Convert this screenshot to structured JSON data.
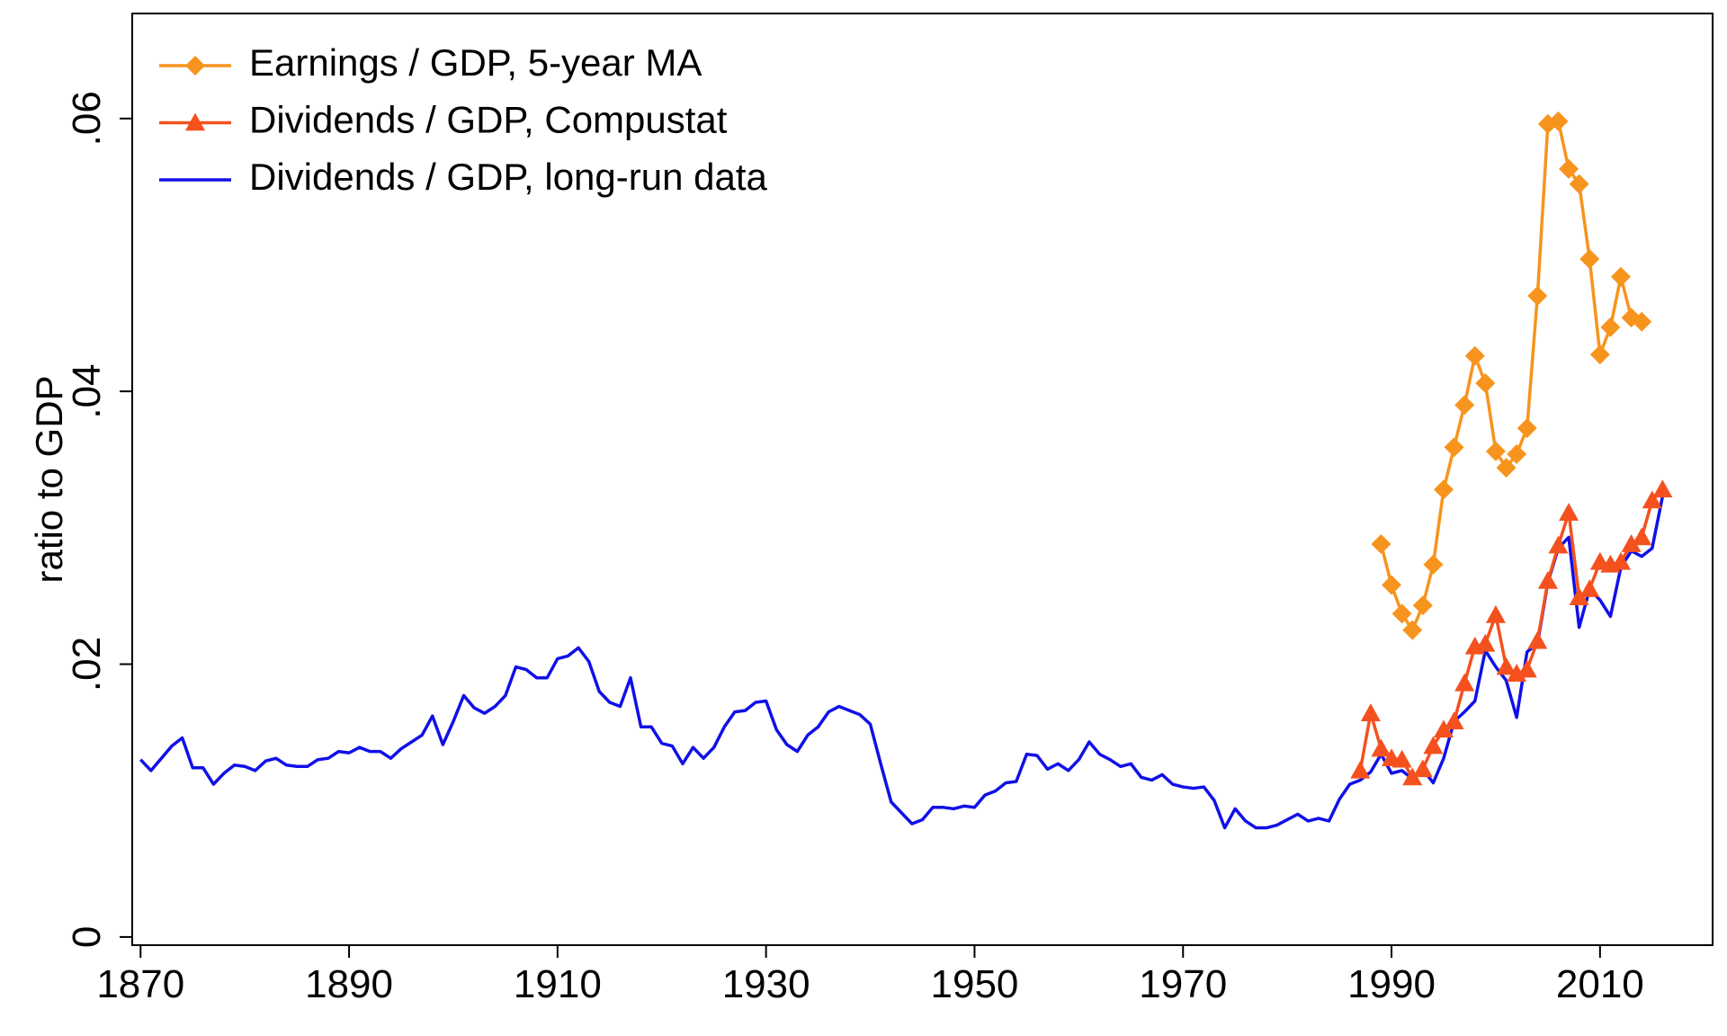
{
  "chart_data": {
    "type": "line",
    "y_label": "ratio to GDP",
    "xlim": [
      1869.2,
      2020.8
    ],
    "ylim": [
      -0.0006,
      0.0677
    ],
    "xticks": [
      1870,
      1890,
      1910,
      1930,
      1950,
      1970,
      1990,
      2010
    ],
    "yticks": [
      0,
      {
        "value": 0.02,
        "label": ".02"
      },
      {
        "value": 0.04,
        "label": ".04"
      },
      {
        "value": 0.06,
        "label": ".06"
      }
    ],
    "grid": false,
    "legend": "top-left",
    "series": [
      {
        "name": "Earnings / GDP, 5-year MA",
        "color": "#f7941d",
        "marker": "diamond",
        "x": [
          1989,
          1990,
          1991,
          1992,
          1993,
          1994,
          1995,
          1996,
          1997,
          1998,
          1999,
          2000,
          2001,
          2002,
          2003,
          2004,
          2005,
          2006,
          2007,
          2008,
          2009,
          2010,
          2011,
          2012,
          2013,
          2014
        ],
        "values": [
          0.0288,
          0.0258,
          0.0237,
          0.0225,
          0.0243,
          0.0273,
          0.0328,
          0.0359,
          0.039,
          0.0426,
          0.0406,
          0.0356,
          0.0344,
          0.0354,
          0.0373,
          0.047,
          0.0596,
          0.0598,
          0.0563,
          0.0552,
          0.0497,
          0.0427,
          0.0447,
          0.0484,
          0.0454,
          0.0451
        ]
      },
      {
        "name": "Dividends / GDP, Compustat",
        "color": "#f4511e",
        "marker": "triangle",
        "x": [
          1987,
          1988,
          1989,
          1990,
          1991,
          1992,
          1993,
          1994,
          1995,
          1996,
          1997,
          1998,
          1999,
          2000,
          2001,
          2002,
          2003,
          2004,
          2005,
          2006,
          2007,
          2008,
          2009,
          2010,
          2011,
          2012,
          2013,
          2014,
          2015,
          2016
        ],
        "values": [
          0.0122,
          0.0164,
          0.0138,
          0.0131,
          0.013,
          0.0117,
          0.0123,
          0.014,
          0.0152,
          0.0158,
          0.0186,
          0.0213,
          0.0215,
          0.0236,
          0.0198,
          0.0193,
          0.0196,
          0.0217,
          0.0261,
          0.0287,
          0.0311,
          0.0249,
          0.0255,
          0.0275,
          0.0273,
          0.0275,
          0.0288,
          0.0293,
          0.032,
          0.0328
        ]
      },
      {
        "name": "Dividends / GDP, long-run data",
        "color": "#1010e8",
        "marker": "none",
        "x": [
          1870,
          1871,
          1872,
          1873,
          1874,
          1875,
          1876,
          1877,
          1878,
          1879,
          1880,
          1881,
          1882,
          1883,
          1884,
          1885,
          1886,
          1887,
          1888,
          1889,
          1890,
          1891,
          1892,
          1893,
          1894,
          1895,
          1896,
          1897,
          1898,
          1899,
          1900,
          1901,
          1902,
          1903,
          1904,
          1905,
          1906,
          1907,
          1908,
          1909,
          1910,
          1911,
          1912,
          1913,
          1914,
          1915,
          1916,
          1917,
          1918,
          1919,
          1920,
          1921,
          1922,
          1923,
          1924,
          1925,
          1926,
          1927,
          1928,
          1929,
          1930,
          1931,
          1932,
          1933,
          1934,
          1935,
          1936,
          1937,
          1938,
          1939,
          1940,
          1941,
          1942,
          1943,
          1944,
          1945,
          1946,
          1947,
          1948,
          1949,
          1950,
          1951,
          1952,
          1953,
          1954,
          1955,
          1956,
          1957,
          1958,
          1959,
          1960,
          1961,
          1962,
          1963,
          1964,
          1965,
          1966,
          1967,
          1968,
          1969,
          1970,
          1971,
          1972,
          1973,
          1974,
          1975,
          1976,
          1977,
          1978,
          1979,
          1980,
          1981,
          1982,
          1983,
          1984,
          1985,
          1986,
          1987,
          1988,
          1989,
          1990,
          1991,
          1992,
          1993,
          1994,
          1995,
          1996,
          1997,
          1998,
          1999,
          2000,
          2001,
          2002,
          2003,
          2004,
          2005,
          2006,
          2007,
          2008,
          2009,
          2010,
          2011,
          2012,
          2013,
          2014,
          2015,
          2016
        ],
        "values": [
          0.013,
          0.0122,
          0.0131,
          0.014,
          0.0146,
          0.0124,
          0.0124,
          0.0112,
          0.012,
          0.0126,
          0.0125,
          0.0122,
          0.0129,
          0.0131,
          0.0126,
          0.0125,
          0.0125,
          0.013,
          0.0131,
          0.0136,
          0.0135,
          0.0139,
          0.0136,
          0.0136,
          0.0131,
          0.0138,
          0.0143,
          0.0148,
          0.0162,
          0.0141,
          0.0158,
          0.0177,
          0.0168,
          0.0164,
          0.0169,
          0.0177,
          0.0198,
          0.0196,
          0.019,
          0.019,
          0.0204,
          0.0206,
          0.0212,
          0.0202,
          0.018,
          0.0172,
          0.0169,
          0.019,
          0.0154,
          0.0154,
          0.0142,
          0.014,
          0.0127,
          0.0139,
          0.0131,
          0.0139,
          0.0154,
          0.0165,
          0.0166,
          0.0172,
          0.0173,
          0.0152,
          0.0141,
          0.0136,
          0.0148,
          0.0154,
          0.0165,
          0.0169,
          0.0166,
          0.0163,
          0.0156,
          0.0127,
          0.0099,
          0.0091,
          0.0083,
          0.0086,
          0.0095,
          0.0095,
          0.0094,
          0.0096,
          0.0095,
          0.0104,
          0.0107,
          0.0113,
          0.0114,
          0.0134,
          0.0133,
          0.0123,
          0.0127,
          0.0122,
          0.013,
          0.0143,
          0.0134,
          0.013,
          0.0125,
          0.0127,
          0.0117,
          0.0115,
          0.0119,
          0.0112,
          0.011,
          0.0109,
          0.011,
          0.01,
          0.008,
          0.0094,
          0.0085,
          0.008,
          0.008,
          0.0082,
          0.0086,
          0.009,
          0.0085,
          0.0087,
          0.0085,
          0.0101,
          0.0112,
          0.0115,
          0.0121,
          0.0134,
          0.012,
          0.0122,
          0.0116,
          0.0123,
          0.0113,
          0.0131,
          0.0158,
          0.0165,
          0.0173,
          0.021,
          0.0198,
          0.0188,
          0.0161,
          0.0209,
          0.0215,
          0.026,
          0.0285,
          0.0293,
          0.0227,
          0.0255,
          0.0247,
          0.0235,
          0.0271,
          0.0283,
          0.0279,
          0.0285,
          0.0323
        ]
      }
    ]
  }
}
